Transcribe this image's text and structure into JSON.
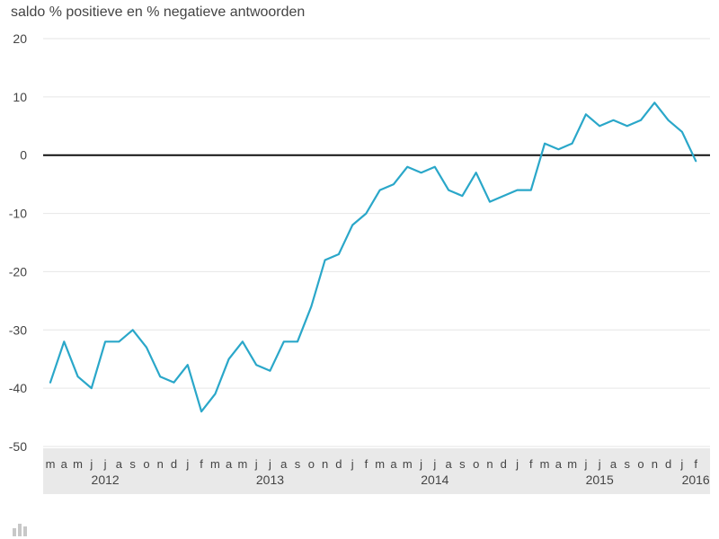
{
  "chart_data": {
    "type": "line",
    "title": "saldo % positieve en % negatieve antwoorden",
    "xlabel": "",
    "ylabel": "",
    "ylim": [
      -50,
      20
    ],
    "yticks": [
      20,
      10,
      0,
      -10,
      -20,
      -30,
      -40,
      -50
    ],
    "ytick_labels": [
      "20",
      "10",
      "0",
      "-10",
      "-20",
      "-30",
      "-40",
      "-50"
    ],
    "grid": "horizontal",
    "zero_line": true,
    "line_color": "#2aa7c9",
    "x": [
      "2012-03",
      "2012-04",
      "2012-05",
      "2012-06",
      "2012-07",
      "2012-08",
      "2012-09",
      "2012-10",
      "2012-11",
      "2012-12",
      "2013-01",
      "2013-02",
      "2013-03",
      "2013-04",
      "2013-05",
      "2013-06",
      "2013-07",
      "2013-08",
      "2013-09",
      "2013-10",
      "2013-11",
      "2013-12",
      "2014-01",
      "2014-02",
      "2014-03",
      "2014-04",
      "2014-05",
      "2014-06",
      "2014-07",
      "2014-08",
      "2014-09",
      "2014-10",
      "2014-11",
      "2014-12",
      "2015-01",
      "2015-02",
      "2015-03",
      "2015-04",
      "2015-05",
      "2015-06",
      "2015-07",
      "2015-08",
      "2015-09",
      "2015-10",
      "2015-11",
      "2015-12",
      "2016-01",
      "2016-02"
    ],
    "month_tick_labels": [
      "m",
      "a",
      "m",
      "j",
      "j",
      "a",
      "s",
      "o",
      "n",
      "d",
      "j",
      "f",
      "m",
      "a",
      "m",
      "j",
      "j",
      "a",
      "s",
      "o",
      "n",
      "d",
      "j",
      "f",
      "m",
      "a",
      "m",
      "j",
      "j",
      "a",
      "s",
      "o",
      "n",
      "d",
      "j",
      "f",
      "m",
      "a",
      "m",
      "j",
      "j",
      "a",
      "s",
      "o",
      "n",
      "d",
      "j",
      "f"
    ],
    "year_labels": [
      {
        "label": "2012",
        "month": "2012-07"
      },
      {
        "label": "2013",
        "month": "2013-07"
      },
      {
        "label": "2014",
        "month": "2014-07"
      },
      {
        "label": "2015",
        "month": "2015-07"
      },
      {
        "label": "2016",
        "month": "2016-02"
      }
    ],
    "series": [
      {
        "values": [
          -39,
          -32,
          -38,
          -40,
          -32,
          -32,
          -30,
          -33,
          -38,
          -39,
          -36,
          -44,
          -41,
          -35,
          -32,
          -36,
          -37,
          -32,
          -32,
          -26,
          -18,
          -17,
          -12,
          -10,
          -6,
          -5,
          -2,
          -3,
          -2,
          -6,
          -7,
          -3,
          -8,
          -7,
          -6,
          -6,
          2,
          1,
          2,
          7,
          5,
          6,
          5,
          6,
          9,
          6,
          4,
          -1
        ]
      }
    ]
  }
}
